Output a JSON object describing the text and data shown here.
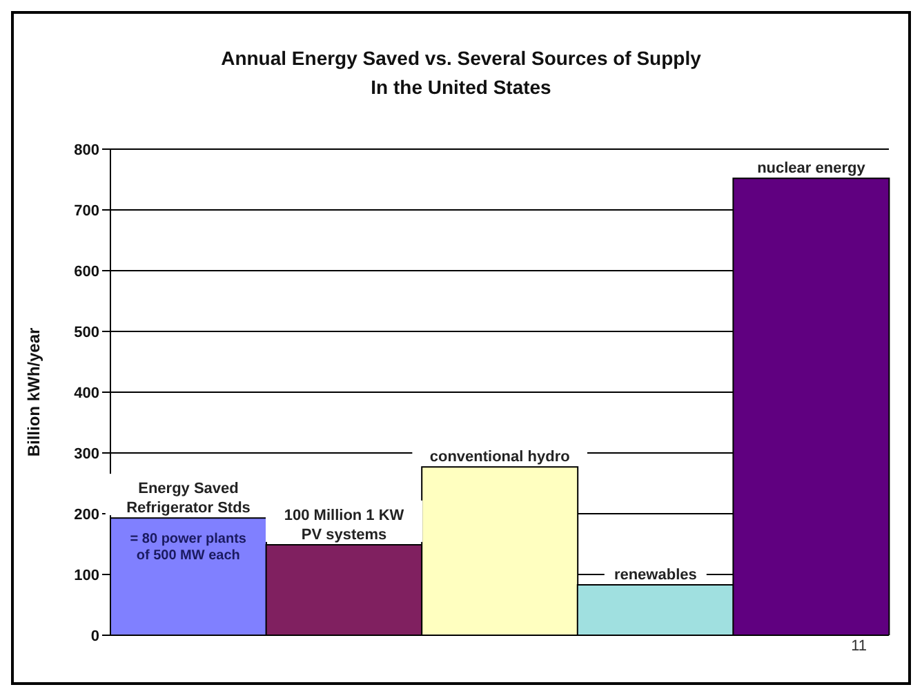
{
  "chart_data": {
    "type": "bar",
    "title": "Annual Energy Saved vs. Several Sources of Supply\nIn the United States",
    "ylabel": "Billion kWh/year",
    "categories": [
      "Energy Saved\nRefrigerator Stds",
      "100 Million 1 KW\nPV systems",
      "conventional hydro",
      "renewables",
      "nuclear energy"
    ],
    "values": [
      193,
      149,
      277,
      83,
      752
    ],
    "colors": [
      "#8080ff",
      "#802060",
      "#ffffc0",
      "#a0e0e0",
      "#600080"
    ],
    "ylim": [
      0,
      800
    ],
    "yticks": [
      0,
      100,
      200,
      300,
      400,
      500,
      600,
      700,
      800
    ],
    "grid": "y",
    "annotations": [
      "= 80 power plants\nof 500 MW each",
      "11"
    ]
  }
}
